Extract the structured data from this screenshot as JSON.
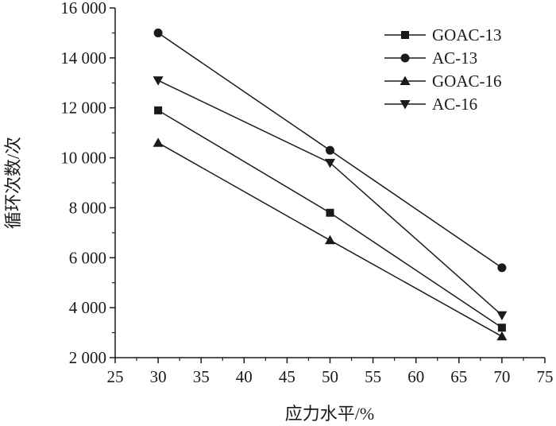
{
  "chart_data": {
    "type": "line",
    "xlabel": "应力水平/%",
    "ylabel": "循环次数/次",
    "xlim": [
      25,
      75
    ],
    "ylim": [
      2000,
      16000
    ],
    "xticks": [
      25,
      30,
      35,
      40,
      45,
      50,
      55,
      60,
      65,
      70,
      75
    ],
    "yticks": [
      2000,
      4000,
      6000,
      8000,
      10000,
      12000,
      14000,
      16000
    ],
    "ytick_labels": [
      "2 000",
      "4 000",
      "6 000",
      "8 000",
      "10 000",
      "12 000",
      "14 000",
      "16 000"
    ],
    "x": [
      30,
      50,
      70
    ],
    "grid": false,
    "legend_position": "top-right",
    "series": [
      {
        "name": "GOAC-13",
        "marker": "square",
        "values": [
          11900,
          7800,
          3200
        ]
      },
      {
        "name": "AC-13",
        "marker": "circle",
        "values": [
          15000,
          10300,
          5600
        ]
      },
      {
        "name": "GOAC-16",
        "marker": "triangle-up",
        "values": [
          10600,
          6700,
          2850
        ]
      },
      {
        "name": "AC-16",
        "marker": "triangle-down",
        "values": [
          13100,
          9800,
          3700
        ]
      }
    ],
    "colors": {
      "line": "#1a1a1a",
      "axis": "#1a1a1a",
      "background": "#ffffff"
    }
  }
}
